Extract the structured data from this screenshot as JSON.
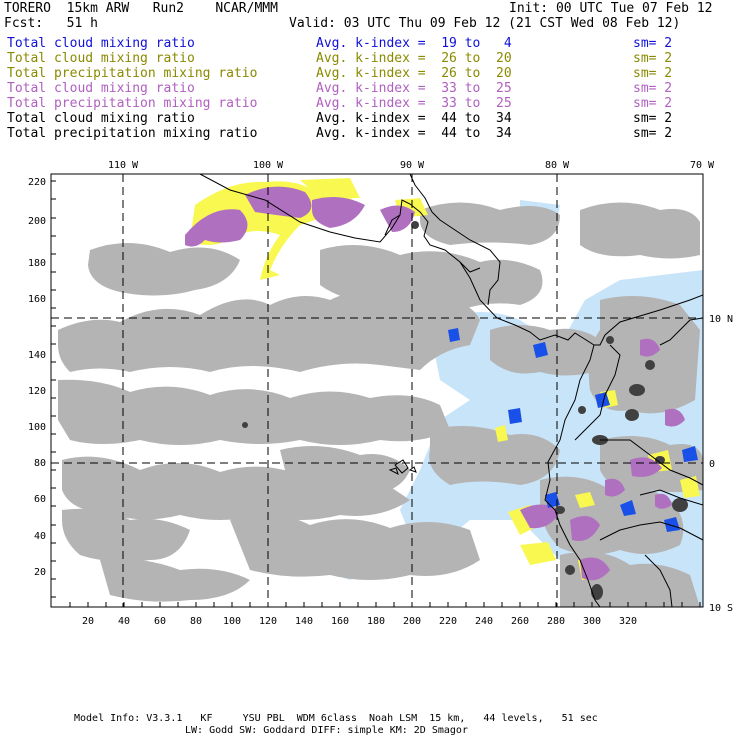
{
  "header": {
    "model": "TORERO  15km ARW   Run2    NCAR/MMM",
    "init": "Init: 00 UTC Tue 07 Feb 12",
    "fcst": "Fcst:   51 h",
    "valid": "Valid: 03 UTC Thu 09 Feb 12 (21 CST Wed 08 Feb 12)"
  },
  "legend": [
    {
      "field": "Total cloud mixing ratio",
      "range": "Avg. k-index =  19 to   4",
      "sm": "sm= 2",
      "color": "#1010d8"
    },
    {
      "field": "Total cloud mixing ratio",
      "range": "Avg. k-index =  26 to  20",
      "sm": "sm= 2",
      "color": "#8a8a00"
    },
    {
      "field": "Total precipitation mixing ratio",
      "range": "Avg. k-index =  26 to  20",
      "sm": "sm= 2",
      "color": "#8a8a00"
    },
    {
      "field": "Total cloud mixing ratio",
      "range": "Avg. k-index =  33 to  25",
      "sm": "sm= 2",
      "color": "#b060c0"
    },
    {
      "field": "Total precipitation mixing ratio",
      "range": "Avg. k-index =  33 to  25",
      "sm": "sm= 2",
      "color": "#b060c0"
    },
    {
      "field": "Total cloud mixing ratio",
      "range": "Avg. k-index =  44 to  34",
      "sm": "sm= 2",
      "color": "#000000"
    },
    {
      "field": "Total precipitation mixing ratio",
      "range": "Avg. k-index =  44 to  34",
      "sm": "sm= 2",
      "color": "#000000"
    }
  ],
  "map": {
    "lon_labels": [
      "110 W",
      "100 W",
      "90 W",
      "80 W",
      "70 W"
    ],
    "lat_labels": [
      "10 N",
      "0",
      "10 S"
    ],
    "y_ticks": [
      "20",
      "40",
      "60",
      "80",
      "100",
      "120",
      "140",
      "160",
      "180",
      "200",
      "220"
    ],
    "x_ticks": [
      "20",
      "40",
      "60",
      "80",
      "100",
      "120",
      "140",
      "160",
      "180",
      "200",
      "220",
      "240",
      "260",
      "280",
      "300",
      "320"
    ],
    "colors": {
      "gray": "#b4b4b4",
      "dark": "#404040",
      "yellow": "#f8f850",
      "purple": "#b070c0",
      "blue": "#1850e8",
      "lightblue": "#c8e4f8"
    }
  },
  "footer": {
    "line1": "Model Info: V3.3.1   KF     YSU PBL  WDM 6class  Noah LSM  15 km,   44 levels,   51 sec",
    "line2": "LW: Godd SW: Goddard DIFF: simple KM: 2D Smagor"
  }
}
